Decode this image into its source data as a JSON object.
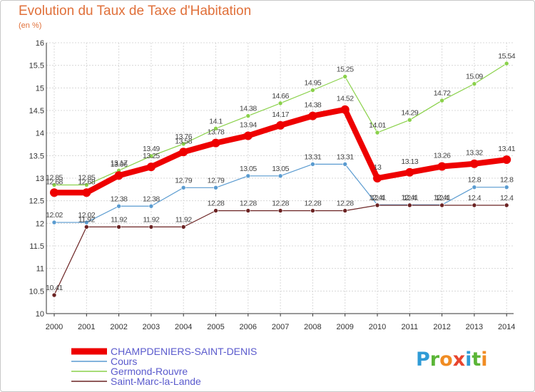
{
  "title": "Evolution du Taux de Taxe d'Habitation",
  "subtitle": "(en %)",
  "logo": {
    "letters": [
      "P",
      "r",
      "o",
      "x",
      "i",
      "t",
      "i"
    ],
    "colors": [
      "#2f9bd6",
      "#5bb537",
      "#f08c23",
      "#e8452e",
      "#2f9bd6",
      "#5bb537",
      "#f08c23"
    ]
  },
  "chart_data": {
    "type": "line",
    "x": [
      2000,
      2001,
      2002,
      2003,
      2004,
      2005,
      2006,
      2007,
      2008,
      2009,
      2010,
      2011,
      2012,
      2013,
      2014
    ],
    "ylim": [
      10,
      16
    ],
    "yticks": [
      "10",
      "10.5",
      "11",
      "11.5",
      "12",
      "12.5",
      "13",
      "13.5",
      "14",
      "14.5",
      "15",
      "15.5",
      "16"
    ],
    "grid": true,
    "series": [
      {
        "name": "CHAMPDENIERS-SAINT-DENIS",
        "color": "#ee0000",
        "values": [
          12.68,
          12.68,
          13.06,
          13.25,
          13.58,
          13.78,
          13.94,
          14.17,
          14.38,
          14.52,
          13,
          13.13,
          13.26,
          13.32,
          13.41
        ],
        "labels": [
          "12.68",
          "12.68",
          "13.06",
          "13.25",
          "13.58",
          "13.78",
          "13.94",
          "14.17",
          "14.38",
          "14.52",
          "13",
          "13.13",
          "13.26",
          "13.32",
          "13.41"
        ]
      },
      {
        "name": "Cours",
        "color": "#5a9bd0",
        "values": [
          12.02,
          12.02,
          12.38,
          12.38,
          12.79,
          12.79,
          13.05,
          13.05,
          13.31,
          13.31,
          12.41,
          12.41,
          12.41,
          12.8,
          12.8
        ],
        "labels": [
          "12.02",
          "12.02",
          "12.38",
          "12.38",
          "12.79",
          "12.79",
          "13.05",
          "13.05",
          "13.31",
          "13.31",
          "12.41",
          "12.41",
          "12.41",
          "12.8",
          "12.8"
        ]
      },
      {
        "name": "Germond-Rouvre",
        "color": "#8ad14a",
        "values": [
          12.85,
          12.85,
          13.17,
          13.49,
          13.76,
          14.1,
          14.38,
          14.66,
          14.95,
          15.25,
          14.01,
          14.29,
          14.72,
          15.09,
          15.54
        ],
        "labels": [
          "12.85",
          "12.85",
          "13.17",
          "13.49",
          "13.76",
          "14.1",
          "14.38",
          "14.66",
          "14.95",
          "15.25",
          "14.01",
          "14.29",
          "14.72",
          "15.09",
          "15.54"
        ]
      },
      {
        "name": "Saint-Marc-la-Lande",
        "color": "#6b2323",
        "values": [
          10.41,
          11.92,
          11.92,
          11.92,
          11.92,
          12.28,
          12.28,
          12.28,
          12.28,
          12.28,
          12.4,
          12.4,
          12.4,
          12.4,
          12.4
        ],
        "labels": [
          "10.41",
          "11.92",
          "11.92",
          "11.92",
          "11.92",
          "12.28",
          "12.28",
          "12.28",
          "12.28",
          "12.28",
          "12.4",
          "12.4",
          "12.4",
          "12.4",
          "12.4"
        ]
      }
    ]
  }
}
